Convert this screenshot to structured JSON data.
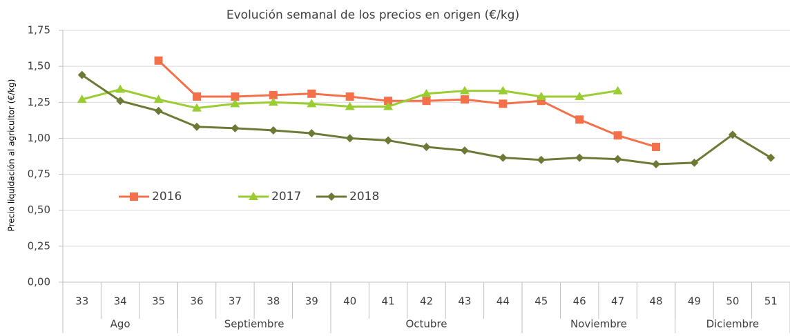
{
  "chart_data": {
    "type": "line",
    "title": "Evolución semanal de los precios en origen (€/kg)",
    "y_label": "Precio liquidación al agricultor (€/kg)",
    "categories": [
      "33",
      "34",
      "35",
      "36",
      "37",
      "38",
      "39",
      "40",
      "41",
      "42",
      "43",
      "44",
      "45",
      "46",
      "47",
      "48",
      "49",
      "50",
      "51"
    ],
    "groups": [
      {
        "label": "Ago",
        "span": 3
      },
      {
        "label": "Septiembre",
        "span": 4
      },
      {
        "label": "Octubre",
        "span": 5
      },
      {
        "label": "Noviembre",
        "span": 4
      },
      {
        "label": "Diciembre",
        "span": 3
      }
    ],
    "series": [
      {
        "name": "2016",
        "color": "#f4704a",
        "marker": "square",
        "values": [
          null,
          null,
          1.54,
          1.29,
          1.29,
          1.3,
          1.31,
          1.29,
          1.26,
          1.26,
          1.27,
          1.24,
          1.26,
          1.13,
          1.02,
          0.94,
          null,
          null,
          null
        ]
      },
      {
        "name": "2017",
        "color": "#9acd32",
        "marker": "triangle",
        "values": [
          1.27,
          1.34,
          1.27,
          1.21,
          1.24,
          1.25,
          1.24,
          1.22,
          1.22,
          1.31,
          1.33,
          1.33,
          1.29,
          1.29,
          1.33,
          null,
          null,
          null,
          null
        ]
      },
      {
        "name": "2018",
        "color": "#6b7a34",
        "marker": "diamond",
        "values": [
          1.44,
          1.26,
          1.19,
          1.08,
          1.07,
          1.055,
          1.035,
          1.0,
          0.985,
          0.94,
          0.915,
          0.865,
          0.85,
          0.865,
          0.855,
          0.82,
          0.83,
          1.025,
          0.865
        ]
      }
    ],
    "ylim": [
      0,
      1.75
    ],
    "yticks": [
      {
        "value": 0,
        "label": "0,00"
      },
      {
        "value": 0.25,
        "label": "0,25"
      },
      {
        "value": 0.5,
        "label": "0,50"
      },
      {
        "value": 0.75,
        "label": "0,75"
      },
      {
        "value": 1,
        "label": "1,00"
      },
      {
        "value": 1.25,
        "label": "1,25"
      },
      {
        "value": 1.5,
        "label": "1,50"
      },
      {
        "value": 1.75,
        "label": "1,75"
      }
    ],
    "grid": true,
    "legend": "center-left"
  }
}
